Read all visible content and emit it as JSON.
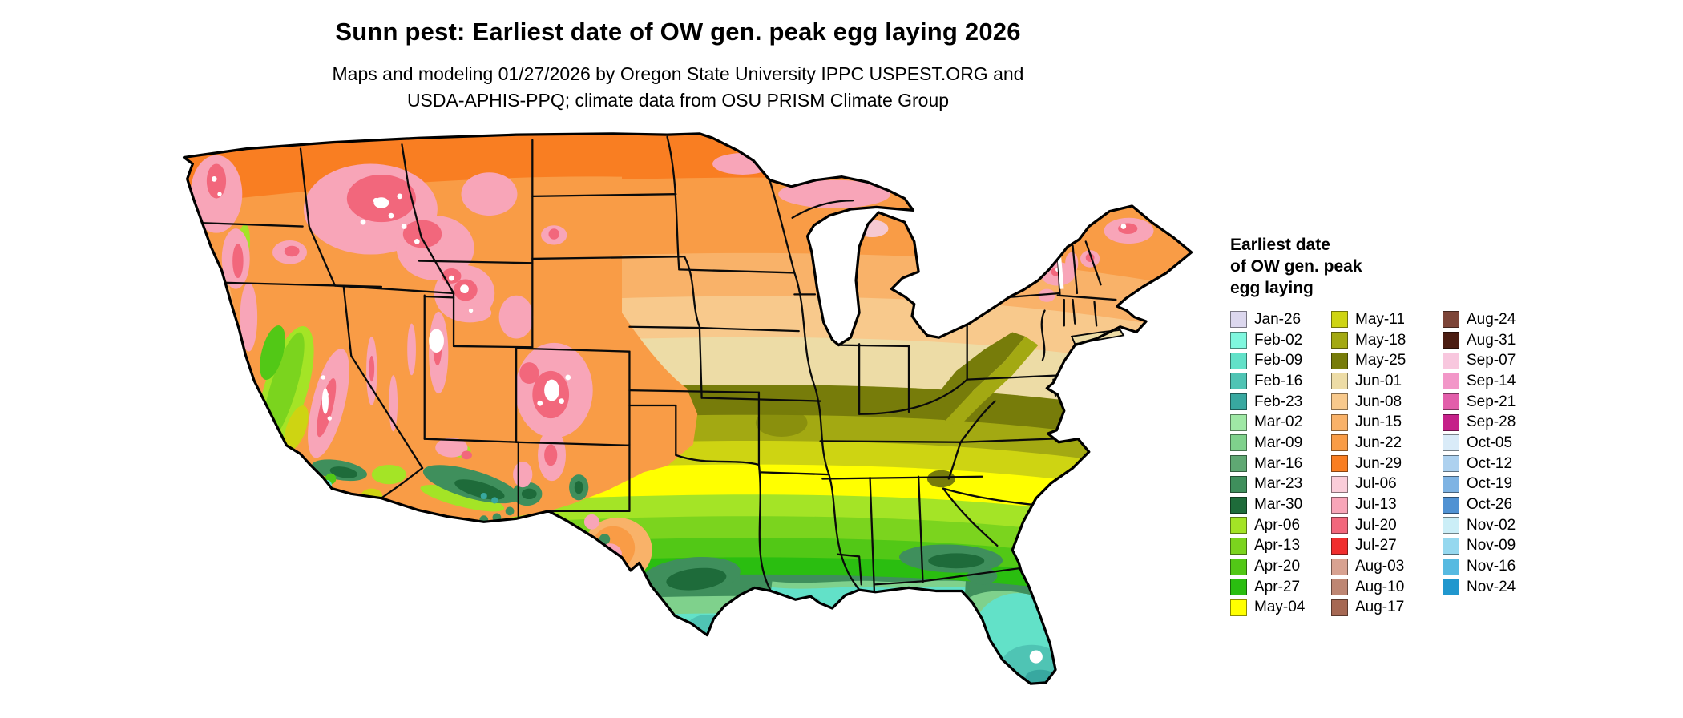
{
  "header": {
    "title": "Sunn pest: Earliest date of OW gen. peak egg laying 2026",
    "subtitle_line1": "Maps and modeling 01/27/2026 by Oregon State University IPPC USPEST.ORG and",
    "subtitle_line2": "USDA-APHIS-PPQ; climate data from OSU PRISM Climate Group"
  },
  "legend": {
    "title_lines": [
      "Earliest date",
      "of OW gen. peak",
      "egg laying"
    ],
    "columns": [
      [
        {
          "label": "Jan-26",
          "color": "#DCD7EE"
        },
        {
          "label": "Feb-02",
          "color": "#7FF7DE"
        },
        {
          "label": "Feb-09",
          "color": "#62E1C8"
        },
        {
          "label": "Feb-16",
          "color": "#4FC4B4"
        },
        {
          "label": "Feb-23",
          "color": "#38A8A0"
        },
        {
          "label": "Mar-02",
          "color": "#9FE8A5"
        },
        {
          "label": "Mar-09",
          "color": "#7FD18C"
        },
        {
          "label": "Mar-16",
          "color": "#5FA873"
        },
        {
          "label": "Mar-23",
          "color": "#3F8F5C"
        },
        {
          "label": "Mar-30",
          "color": "#1E6B3A"
        },
        {
          "label": "Apr-06",
          "color": "#A4E426"
        },
        {
          "label": "Apr-13",
          "color": "#7BD41E"
        },
        {
          "label": "Apr-20",
          "color": "#52C816"
        },
        {
          "label": "Apr-27",
          "color": "#2ABE10"
        },
        {
          "label": "May-04",
          "color": "#FFFF00"
        }
      ],
      [
        {
          "label": "May-11",
          "color": "#CED412"
        },
        {
          "label": "May-18",
          "color": "#A3A912"
        },
        {
          "label": "May-25",
          "color": "#777C0A"
        },
        {
          "label": "Jun-01",
          "color": "#EDDCA6"
        },
        {
          "label": "Jun-08",
          "color": "#F8C98C"
        },
        {
          "label": "Jun-15",
          "color": "#F9B269"
        },
        {
          "label": "Jun-22",
          "color": "#F99C46"
        },
        {
          "label": "Jun-29",
          "color": "#F97E22"
        },
        {
          "label": "Jul-06",
          "color": "#FACDD9"
        },
        {
          "label": "Jul-13",
          "color": "#F8A5B8"
        },
        {
          "label": "Jul-20",
          "color": "#F2677C"
        },
        {
          "label": "Jul-27",
          "color": "#F02E2E"
        },
        {
          "label": "Aug-03",
          "color": "#D8A291"
        },
        {
          "label": "Aug-10",
          "color": "#BE8673"
        },
        {
          "label": "Aug-17",
          "color": "#A66853"
        }
      ],
      [
        {
          "label": "Aug-24",
          "color": "#7D4538"
        },
        {
          "label": "Aug-31",
          "color": "#4C1D12"
        },
        {
          "label": "Sep-07",
          "color": "#F8C7DE"
        },
        {
          "label": "Sep-14",
          "color": "#F297C8"
        },
        {
          "label": "Sep-21",
          "color": "#E25EAA"
        },
        {
          "label": "Sep-28",
          "color": "#C52189"
        },
        {
          "label": "Oct-05",
          "color": "#D9EBF8"
        },
        {
          "label": "Oct-12",
          "color": "#ADD1EF"
        },
        {
          "label": "Oct-19",
          "color": "#7EB3E3"
        },
        {
          "label": "Oct-26",
          "color": "#5092D3"
        },
        {
          "label": "Nov-02",
          "color": "#CBEEF7"
        },
        {
          "label": "Nov-09",
          "color": "#95D8EF"
        },
        {
          "label": "Nov-16",
          "color": "#57BAE1"
        },
        {
          "label": "Nov-24",
          "color": "#2097CE"
        }
      ]
    ]
  }
}
